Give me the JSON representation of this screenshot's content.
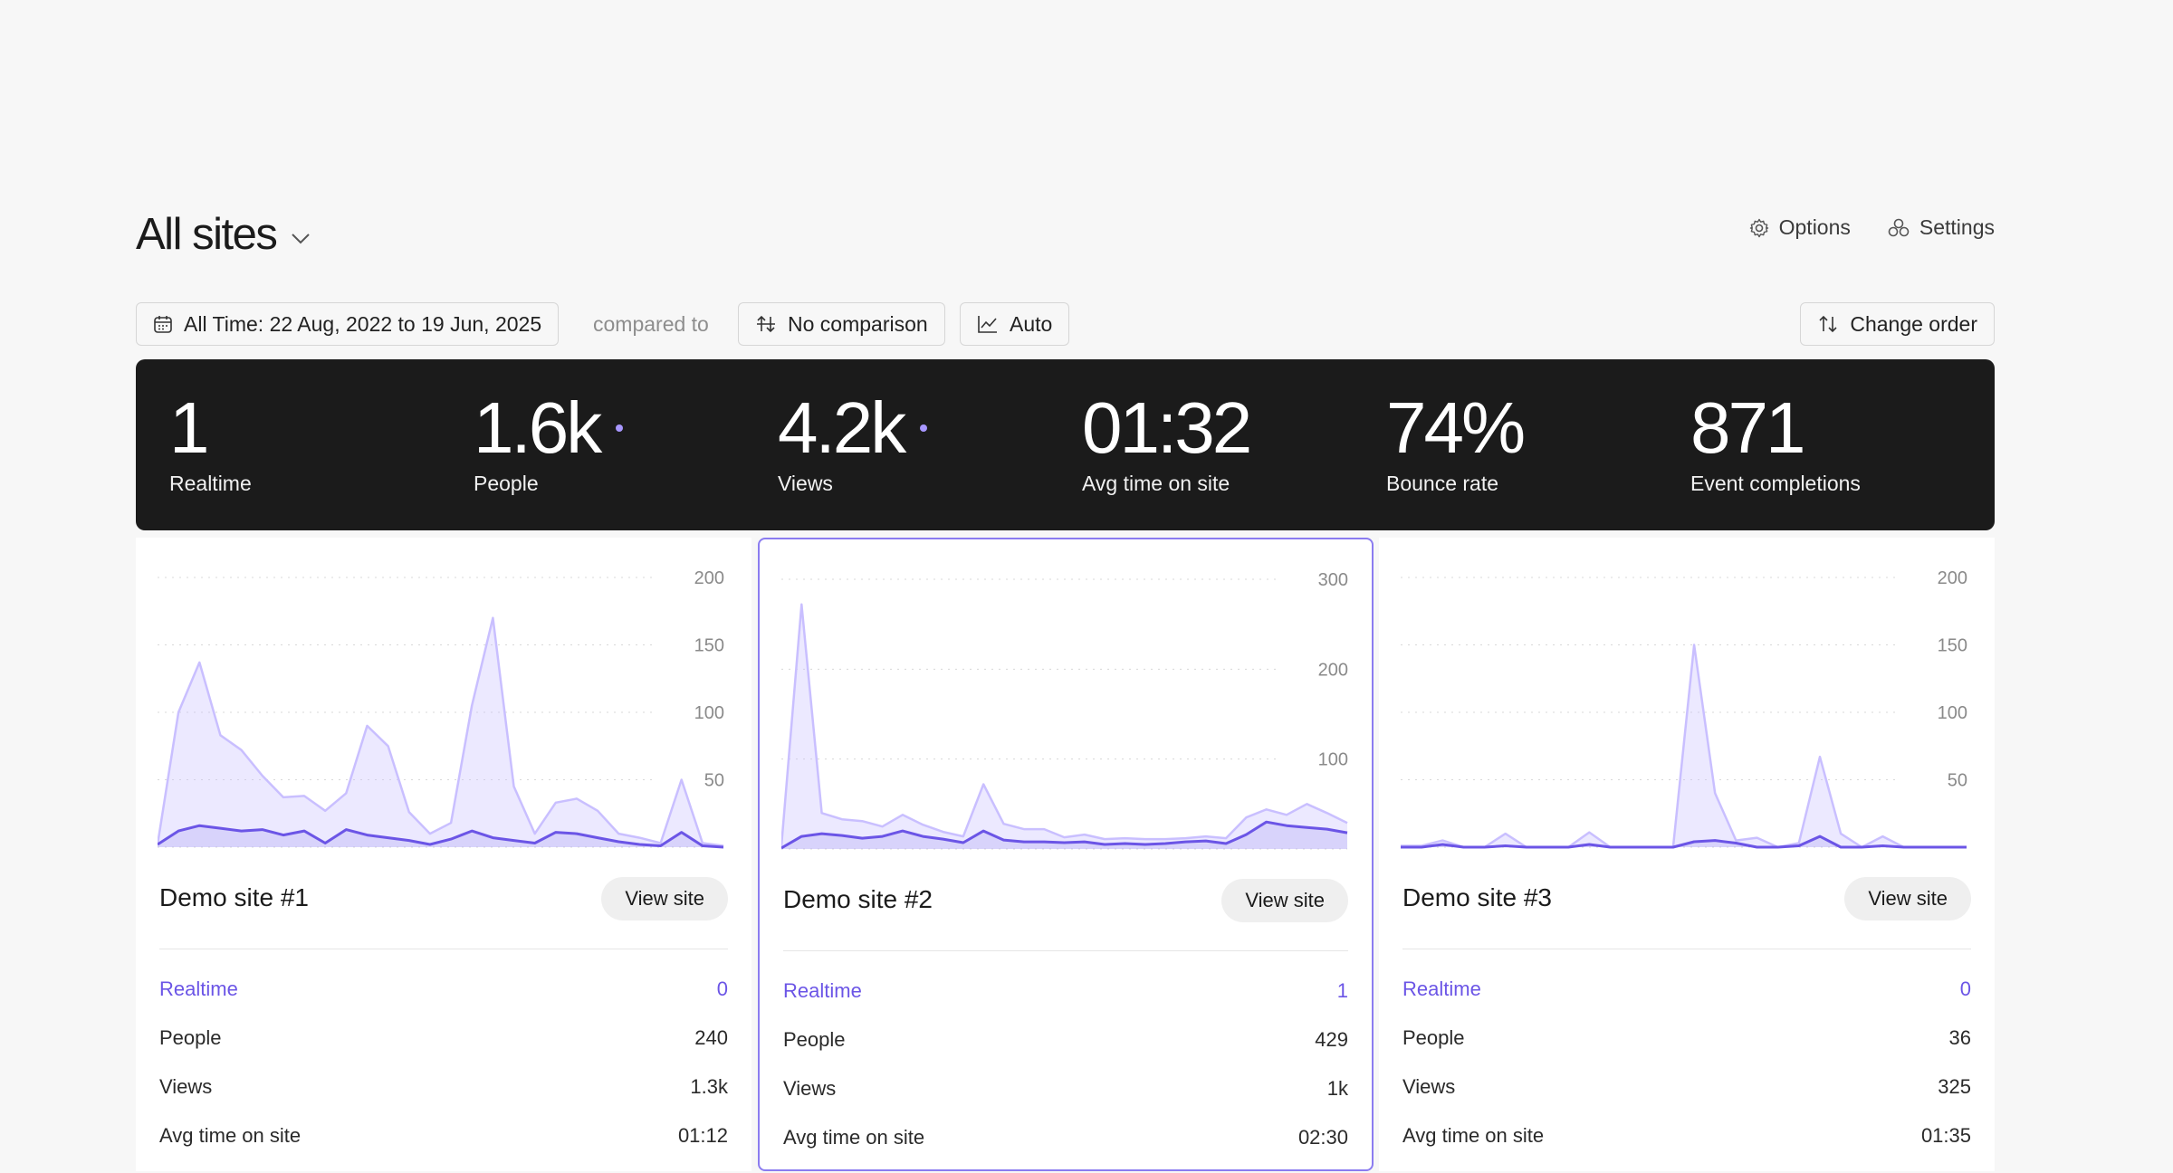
{
  "header": {
    "title": "All sites",
    "options_label": "Options",
    "settings_label": "Settings"
  },
  "toolbar": {
    "date_range": "All Time: 22 Aug, 2022 to 19 Jun, 2025",
    "compared_to": "compared to",
    "comparison": "No comparison",
    "interval": "Auto",
    "change_order": "Change order"
  },
  "stats": [
    {
      "value": "1",
      "label": "Realtime"
    },
    {
      "value": "1.6k",
      "label": "People"
    },
    {
      "value": "4.2k",
      "label": "Views"
    },
    {
      "value": "01:32",
      "label": "Avg time on site"
    },
    {
      "value": "74%",
      "label": "Bounce rate"
    },
    {
      "value": "871",
      "label": "Event completions"
    }
  ],
  "colors": {
    "accent": "#6b55e6",
    "accent_light": "#c9bfff",
    "dark_panel": "#1b1b1b"
  },
  "sites": [
    {
      "name": "Demo site #1",
      "view_label": "View site",
      "realtime_label": "Realtime",
      "realtime": "0",
      "people_label": "People",
      "people": "240",
      "views_label": "Views",
      "views": "1.3k",
      "avg_label": "Avg time on site",
      "avg": "01:12",
      "chart_data": {
        "type": "area",
        "ymax": 200,
        "y_ticks": [
          "200",
          "150",
          "100",
          "50"
        ],
        "views": [
          2,
          100,
          137,
          83,
          72,
          53,
          37,
          38,
          27,
          40,
          90,
          75,
          26,
          10,
          18,
          105,
          170,
          45,
          10,
          33,
          36,
          27,
          10,
          7,
          3,
          50,
          3,
          1
        ],
        "people": [
          2,
          12,
          16,
          14,
          12,
          13,
          9,
          12,
          3,
          13,
          9,
          7,
          5,
          2,
          6,
          12,
          7,
          5,
          3,
          11,
          10,
          7,
          4,
          2,
          1,
          11,
          1,
          0
        ]
      }
    },
    {
      "name": "Demo site #2",
      "view_label": "View site",
      "realtime_label": "Realtime",
      "realtime": "1",
      "people_label": "People",
      "people": "429",
      "views_label": "Views",
      "views": "1k",
      "avg_label": "Avg time on site",
      "avg": "02:30",
      "chart_data": {
        "type": "area",
        "ymax": 300,
        "y_ticks": [
          "300",
          "200",
          "100"
        ],
        "views": [
          3,
          272,
          40,
          33,
          31,
          25,
          38,
          27,
          19,
          14,
          72,
          28,
          22,
          22,
          13,
          16,
          11,
          12,
          11,
          11,
          12,
          14,
          12,
          35,
          44,
          38,
          50,
          40,
          29
        ],
        "people": [
          1,
          14,
          17,
          15,
          12,
          14,
          20,
          14,
          11,
          7,
          20,
          10,
          8,
          8,
          7,
          8,
          5,
          6,
          5,
          6,
          8,
          9,
          6,
          16,
          30,
          26,
          24,
          22,
          18
        ]
      }
    },
    {
      "name": "Demo site #3",
      "view_label": "View site",
      "realtime_label": "Realtime",
      "realtime": "0",
      "people_label": "People",
      "people": "36",
      "views_label": "Views",
      "views": "325",
      "avg_label": "Avg time on site",
      "avg": "01:35",
      "chart_data": {
        "type": "area",
        "ymax": 200,
        "y_ticks": [
          "200",
          "150",
          "100",
          "50"
        ],
        "views": [
          1,
          1,
          5,
          0,
          0,
          10,
          0,
          0,
          0,
          11,
          0,
          0,
          0,
          0,
          150,
          40,
          5,
          7,
          0,
          3,
          67,
          10,
          0,
          8,
          0,
          0,
          0,
          0
        ],
        "people": [
          0,
          0,
          2,
          0,
          0,
          1,
          0,
          0,
          0,
          2,
          0,
          0,
          0,
          0,
          4,
          5,
          3,
          0,
          0,
          1,
          8,
          0,
          0,
          1,
          0,
          0,
          0,
          0
        ]
      }
    }
  ]
}
